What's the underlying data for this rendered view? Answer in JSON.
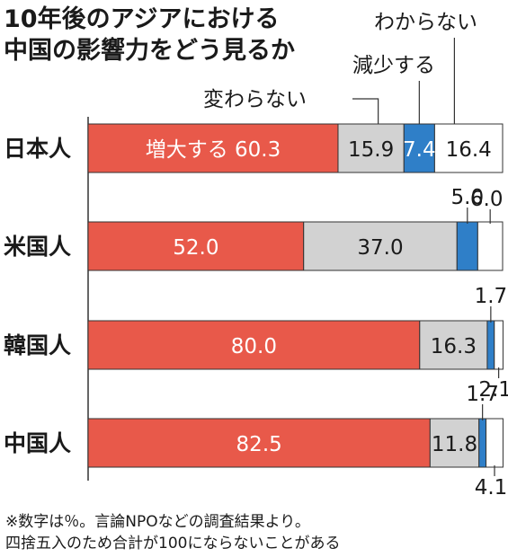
{
  "title_lines": [
    "10年後のアジアにおける",
    "中国の影響力をどう見るか"
  ],
  "colors": {
    "increase": "#e8594a",
    "no_change": "#d2d2d2",
    "decrease": "#2f7fc8",
    "dont_know": "#ffffff",
    "stroke": "#333333"
  },
  "chart_data": {
    "type": "bar",
    "orientation": "horizontal",
    "stacked": true,
    "xlim": [
      0,
      100
    ],
    "categories": [
      "日本人",
      "米国人",
      "韓国人",
      "中国人"
    ],
    "series": [
      {
        "name": "増大する",
        "values": [
          60.3,
          52.0,
          80.0,
          82.5
        ]
      },
      {
        "name": "変わらない",
        "values": [
          15.9,
          37.0,
          16.3,
          11.8
        ]
      },
      {
        "name": "減少する",
        "values": [
          7.4,
          5.0,
          1.7,
          1.7
        ]
      },
      {
        "name": "わからない",
        "values": [
          16.4,
          6.0,
          2.1,
          4.1
        ]
      }
    ],
    "value_labels": [
      [
        "60.3",
        "15.9",
        "7.4",
        "16.4"
      ],
      [
        "52.0",
        "37.0",
        "5.0",
        "6.0"
      ],
      [
        "80.0",
        "16.3",
        "1.7",
        "2.1"
      ],
      [
        "82.5",
        "11.8",
        "1.7",
        "4.1"
      ]
    ],
    "first_bar_prefix": "増大する",
    "legend_placement": "inline-callouts",
    "grid": false
  },
  "notes": [
    "※数字は％。言論NPOなどの調査結果より。",
    "四捨五入のため合計が100にならないことがある"
  ]
}
